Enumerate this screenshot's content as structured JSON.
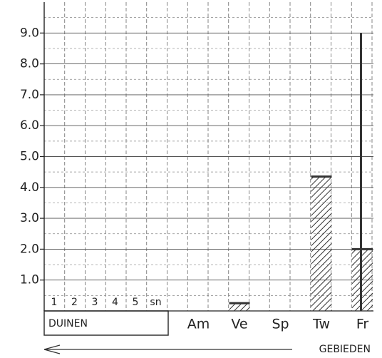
{
  "chart_data": {
    "type": "bar",
    "categories": [
      "Am",
      "Ve",
      "Sp",
      "Tw",
      "Fr"
    ],
    "values": [
      null,
      0.25,
      null,
      4.35,
      2.0
    ],
    "maxima": [
      null,
      null,
      null,
      null,
      9.0
    ],
    "ylim": [
      0,
      10
    ],
    "yticks": [
      {
        "value": 1,
        "label": "1.0"
      },
      {
        "value": 2,
        "label": "2.0"
      },
      {
        "value": 3,
        "label": "3.0"
      },
      {
        "value": 4,
        "label": "4.0"
      },
      {
        "value": 5,
        "label": "5.0"
      },
      {
        "value": 6,
        "label": "6.0"
      },
      {
        "value": 7,
        "label": "7.0"
      },
      {
        "value": 8,
        "label": "8.0"
      },
      {
        "value": 9,
        "label": "9.0"
      }
    ],
    "grid": true,
    "color": "#333333",
    "hatch": true,
    "sub_labels": [
      "1",
      "2",
      "3",
      "4",
      "5",
      "sn"
    ],
    "box_label": "DUINEN",
    "x_label": "GEBIEDEN"
  }
}
